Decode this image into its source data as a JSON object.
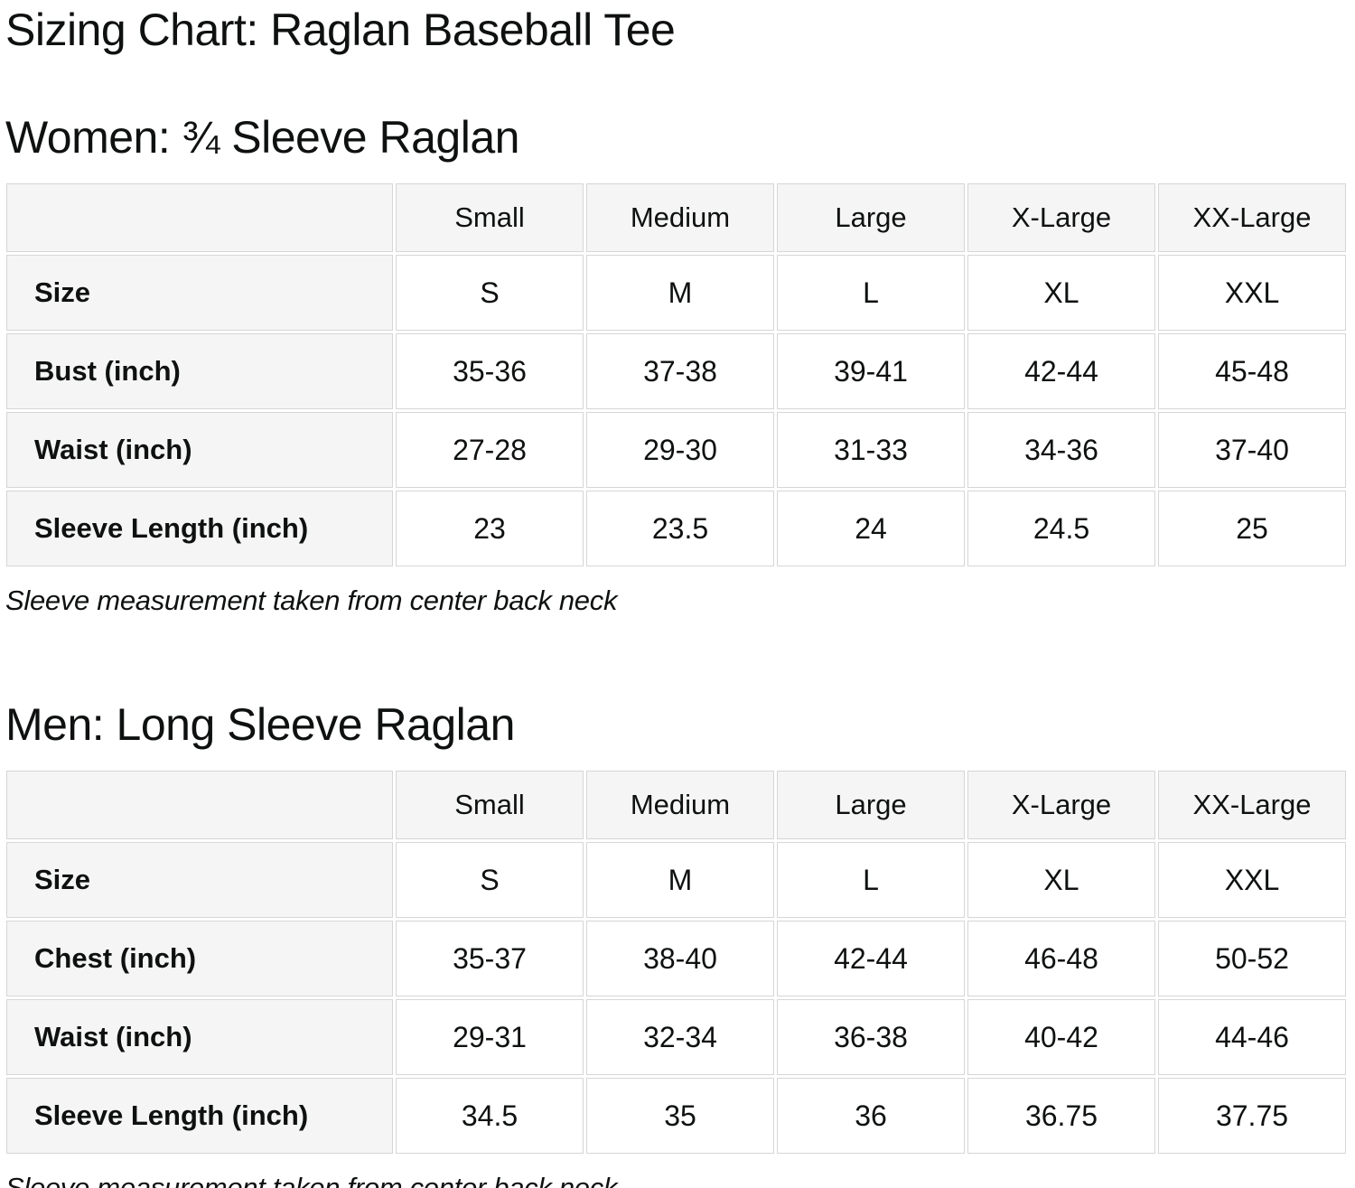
{
  "page": {
    "title": "Sizing Chart: Raglan Baseball Tee",
    "background_color": "#ffffff",
    "text_color": "#0f1111",
    "table_header_bg": "#f5f5f5",
    "table_border_color": "#d6d6d6"
  },
  "sections": [
    {
      "heading": "Women: ¾ Sleeve Raglan",
      "note": "Sleeve measurement taken from center back neck",
      "table": {
        "columns": [
          "",
          "Small",
          "Medium",
          "Large",
          "X-Large",
          "XX-Large"
        ],
        "rows": [
          {
            "label": "Size",
            "values": [
              "S",
              "M",
              "L",
              "XL",
              "XXL"
            ]
          },
          {
            "label": "Bust (inch)",
            "values": [
              "35-36",
              "37-38",
              "39-41",
              "42-44",
              "45-48"
            ]
          },
          {
            "label": "Waist (inch)",
            "values": [
              "27-28",
              "29-30",
              "31-33",
              "34-36",
              "37-40"
            ]
          },
          {
            "label": "Sleeve Length (inch)",
            "values": [
              "23",
              "23.5",
              "24",
              "24.5",
              "25"
            ]
          }
        ]
      }
    },
    {
      "heading": "Men: Long Sleeve Raglan",
      "note": "Sleeve measurement taken from center back neck",
      "table": {
        "columns": [
          "",
          "Small",
          "Medium",
          "Large",
          "X-Large",
          "XX-Large"
        ],
        "rows": [
          {
            "label": "Size",
            "values": [
              "S",
              "M",
              "L",
              "XL",
              "XXL"
            ]
          },
          {
            "label": "Chest (inch)",
            "values": [
              "35-37",
              "38-40",
              "42-44",
              "46-48",
              "50-52"
            ]
          },
          {
            "label": "Waist (inch)",
            "values": [
              "29-31",
              "32-34",
              "36-38",
              "40-42",
              "44-46"
            ]
          },
          {
            "label": "Sleeve Length (inch)",
            "values": [
              "34.5",
              "35",
              "36",
              "36.75",
              "37.75"
            ]
          }
        ]
      }
    }
  ]
}
